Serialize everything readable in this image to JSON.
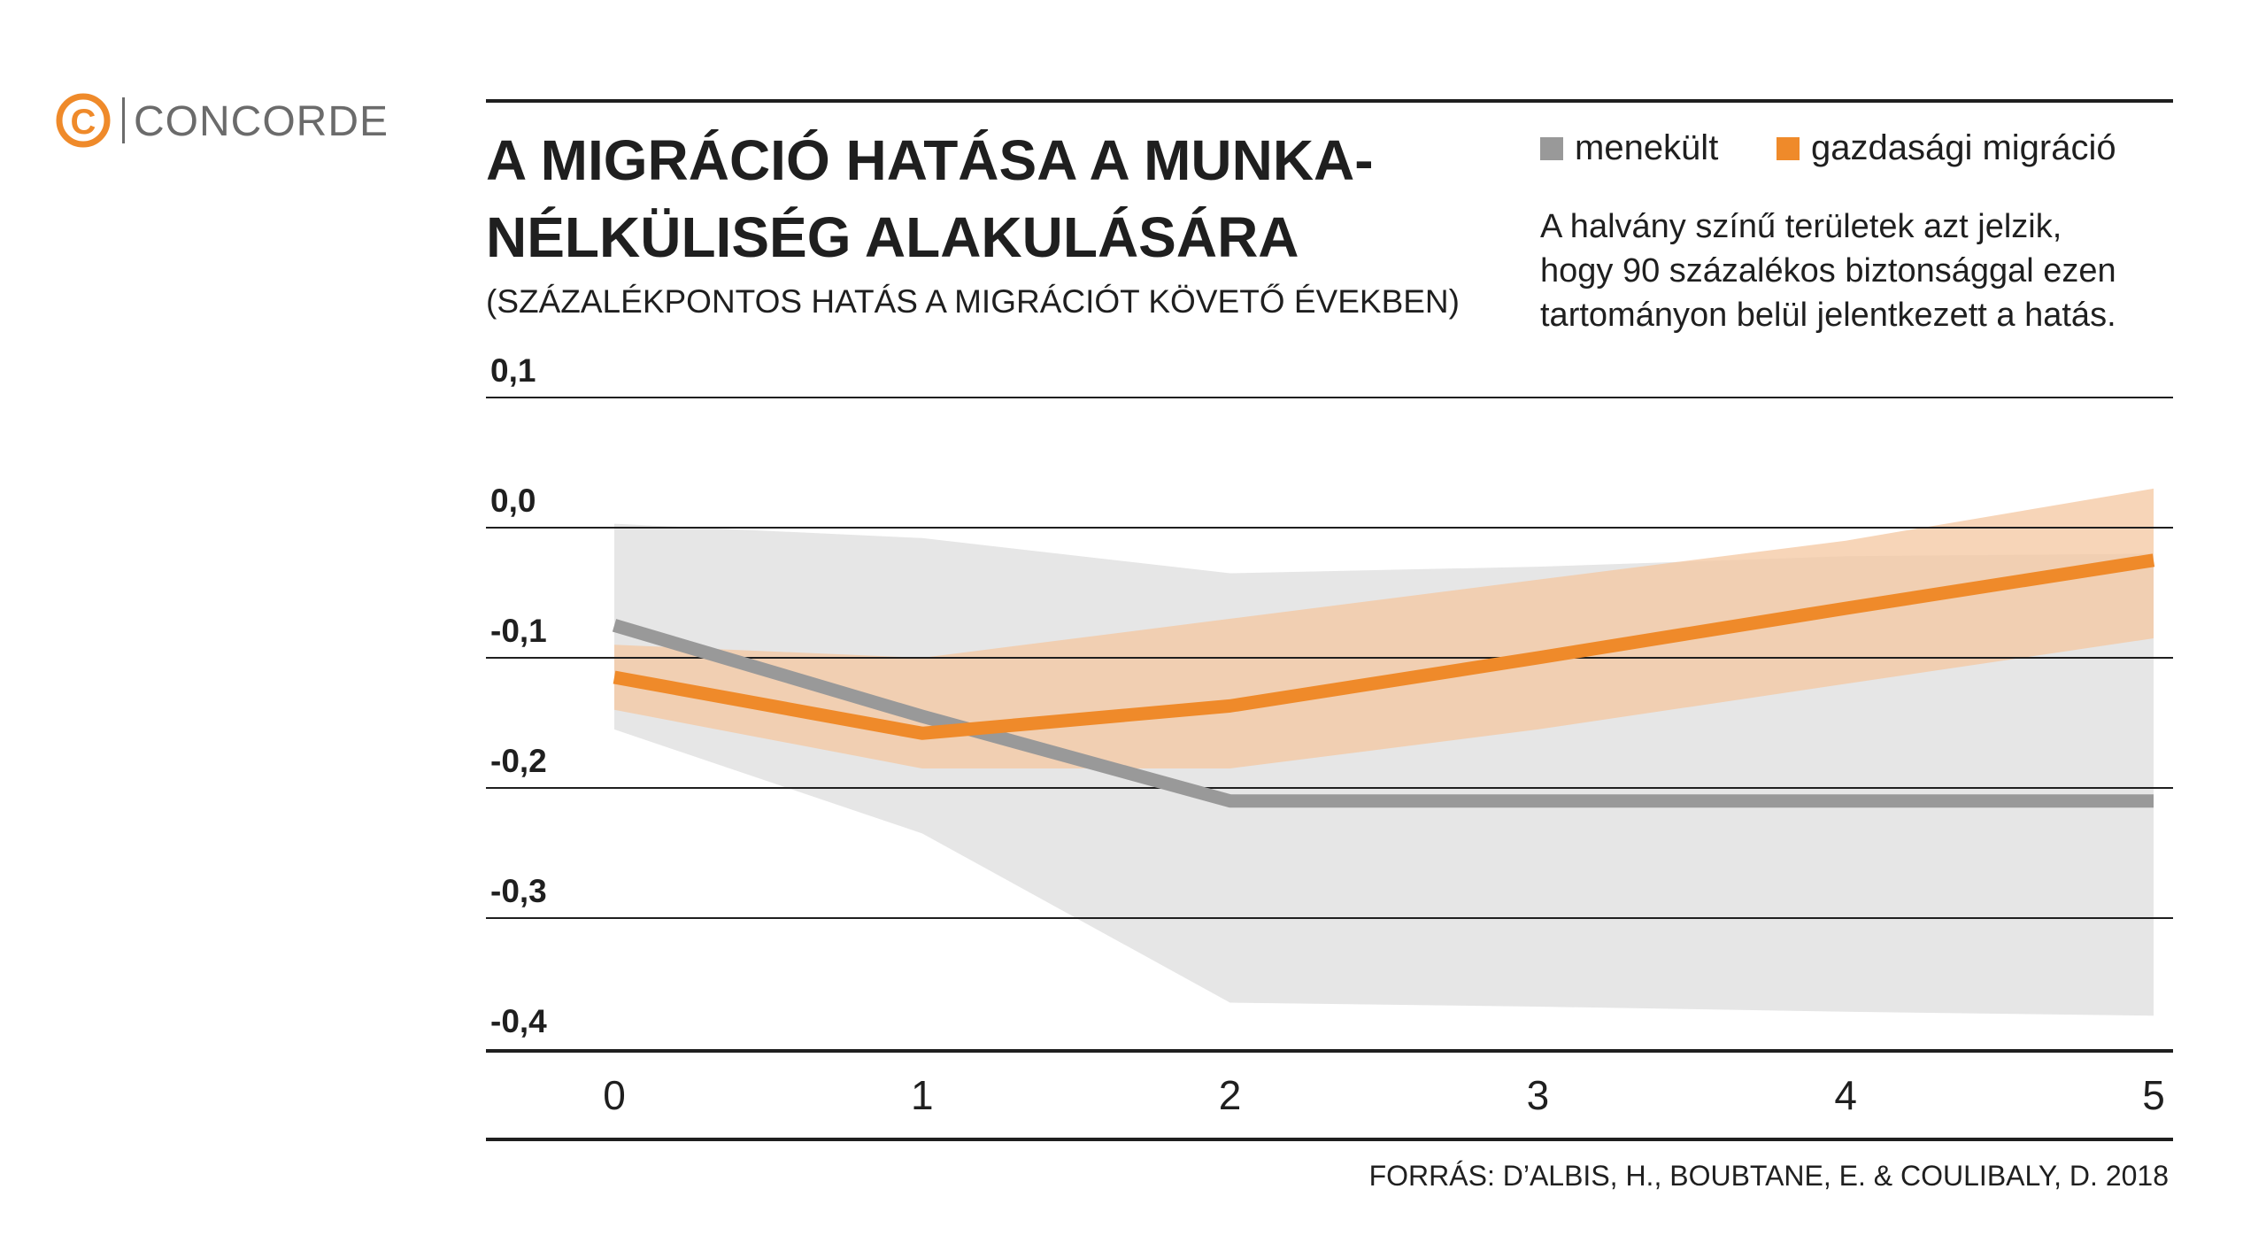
{
  "brand": {
    "logo_text": "CONCORDE",
    "accent_color": "#EF8A2A",
    "logo_gray": "#6b6b6b"
  },
  "title_lines": [
    "A MIGRÁCIÓ HATÁSA A MUNKA-",
    "NÉLKÜLISÉG ALAKULÁSÁRA"
  ],
  "subtitle": "(SZÁZALÉKPONTOS HATÁS A MIGRÁCIÓT KÖVETŐ ÉVEKBEN)",
  "note_lines": [
    "A halvány színű területek azt jelzik,",
    "hogy 90 százalékos biztonsággal ezen",
    "tartományon belül jelentkezett a hatás."
  ],
  "source": "FORRÁS: D’ALBIS, H., BOUBTANE, E. & COULIBALY, D. 2018",
  "chart_data": {
    "type": "line",
    "x": [
      0,
      1,
      2,
      3,
      4,
      5
    ],
    "xticks": [
      "0",
      "1",
      "2",
      "3",
      "4",
      "5"
    ],
    "yticks": [
      "0,1",
      "0,0",
      "-0,1",
      "-0,2",
      "-0,3",
      "-0,4"
    ],
    "ytick_values": [
      0.1,
      0.0,
      -0.1,
      -0.2,
      -0.3,
      -0.4
    ],
    "ylim": [
      -0.4,
      0.1
    ],
    "xlim": [
      0,
      5
    ],
    "grid": true,
    "legend_position": "top-right",
    "series": [
      {
        "name": "menekült",
        "color": "#999999",
        "band_color": "#e6e6e6",
        "values": [
          -0.075,
          -0.145,
          -0.21,
          -0.21,
          -0.21,
          -0.21
        ],
        "lower": [
          -0.155,
          -0.235,
          -0.365,
          -0.368,
          -0.372,
          -0.375
        ],
        "upper": [
          0.003,
          -0.008,
          -0.035,
          -0.03,
          -0.022,
          -0.02
        ]
      },
      {
        "name": "gazdasági migráció",
        "color": "#EF8A2A",
        "band_color": "#f4c7a0",
        "values": [
          -0.115,
          -0.158,
          -0.137,
          -0.1,
          -0.062,
          -0.025
        ],
        "lower": [
          -0.14,
          -0.185,
          -0.185,
          -0.155,
          -0.12,
          -0.085
        ],
        "upper": [
          -0.09,
          -0.1,
          -0.07,
          -0.04,
          -0.01,
          0.03
        ]
      }
    ]
  }
}
